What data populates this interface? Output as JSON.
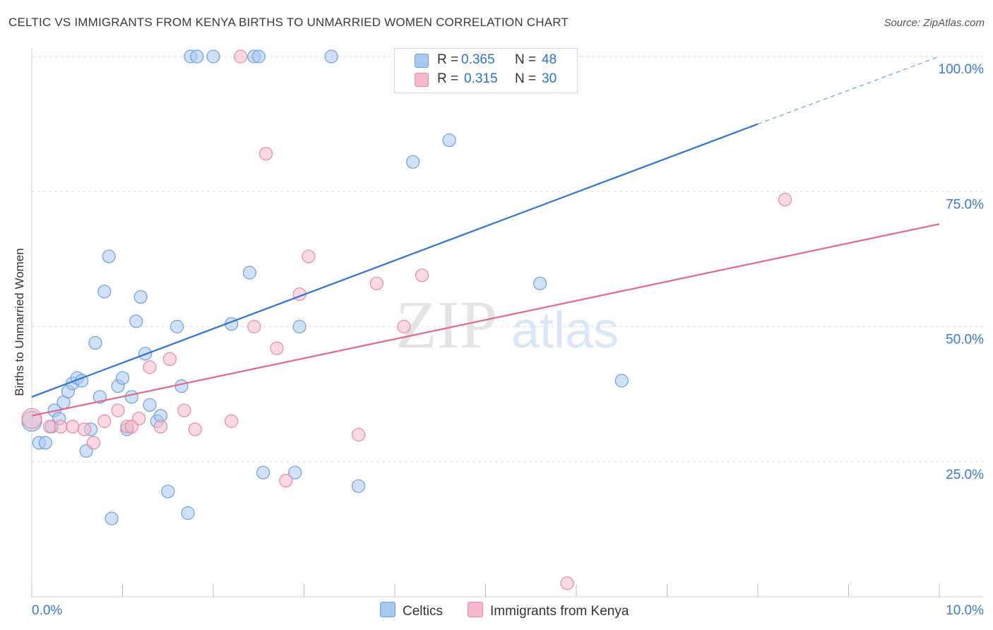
{
  "title": "CELTIC VS IMMIGRANTS FROM KENYA BIRTHS TO UNMARRIED WOMEN CORRELATION CHART",
  "source": "Source: ZipAtlas.com",
  "watermark": {
    "zip": "ZIP",
    "atlas": "atlas"
  },
  "colors": {
    "celtic_fill": "#a9c8f0",
    "celtic_stroke": "#6f9fdc",
    "celtic_line": "#2f73d0",
    "kenya_fill": "#f5b9cb",
    "kenya_stroke": "#e58aa6",
    "kenya_line": "#e0688f",
    "grid": "#dcdcdc",
    "axis_text": "#3c78c8"
  },
  "legend": {
    "r_label": "R =",
    "n_label": "N =",
    "celtic": {
      "r": "0.365",
      "n": "48"
    },
    "kenya": {
      "r": "0.315",
      "n": "30"
    }
  },
  "chart_data": {
    "type": "scatter",
    "title": "CELTIC VS IMMIGRANTS FROM KENYA BIRTHS TO UNMARRIED WOMEN CORRELATION CHART",
    "xlabel": "",
    "ylabel": "Births to Unmarried Women",
    "xlim": [
      0,
      10
    ],
    "ylim": [
      0,
      100
    ],
    "x_tick_labels": [
      "0.0%",
      "10.0%"
    ],
    "y_tick_labels": [
      "25.0%",
      "50.0%",
      "75.0%",
      "100.0%"
    ],
    "y_ticks": [
      25,
      50,
      75,
      100
    ],
    "series": [
      {
        "name": "Celtics",
        "points": [
          [
            0.0,
            32.5
          ],
          [
            0.08,
            28.5
          ],
          [
            0.15,
            28.5
          ],
          [
            0.22,
            31.5
          ],
          [
            0.25,
            34.5
          ],
          [
            0.3,
            33
          ],
          [
            0.35,
            36
          ],
          [
            0.4,
            38
          ],
          [
            0.45,
            39.5
          ],
          [
            0.5,
            40.5
          ],
          [
            0.55,
            40
          ],
          [
            0.6,
            27
          ],
          [
            0.65,
            31
          ],
          [
            0.7,
            47
          ],
          [
            0.75,
            37
          ],
          [
            0.8,
            56.5
          ],
          [
            0.85,
            63
          ],
          [
            0.88,
            14.5
          ],
          [
            0.95,
            39
          ],
          [
            1.0,
            40.5
          ],
          [
            1.05,
            31
          ],
          [
            1.1,
            37
          ],
          [
            1.15,
            51
          ],
          [
            1.2,
            55.5
          ],
          [
            1.25,
            45
          ],
          [
            1.3,
            35.5
          ],
          [
            1.38,
            32.5
          ],
          [
            1.42,
            33.5
          ],
          [
            1.5,
            19.5
          ],
          [
            1.6,
            50
          ],
          [
            1.65,
            39
          ],
          [
            1.72,
            15.5
          ],
          [
            1.75,
            100
          ],
          [
            1.82,
            100
          ],
          [
            2.0,
            100
          ],
          [
            2.2,
            50.5
          ],
          [
            2.4,
            60
          ],
          [
            2.45,
            100
          ],
          [
            2.5,
            100
          ],
          [
            2.55,
            23
          ],
          [
            2.9,
            23
          ],
          [
            2.95,
            50
          ],
          [
            3.3,
            100
          ],
          [
            3.6,
            20.5
          ],
          [
            4.2,
            80.5
          ],
          [
            4.6,
            84.5
          ],
          [
            5.6,
            58
          ],
          [
            6.5,
            40
          ]
        ],
        "trend": {
          "x": [
            0,
            8.0
          ],
          "y": [
            37,
            87.5
          ],
          "dashed_x": [
            8.0,
            10
          ],
          "dashed_y": [
            87.5,
            100
          ]
        }
      },
      {
        "name": "Immigrants from Kenya",
        "points": [
          [
            0.0,
            33
          ],
          [
            0.2,
            31.5
          ],
          [
            0.32,
            31.5
          ],
          [
            0.45,
            31.5
          ],
          [
            0.58,
            31
          ],
          [
            0.68,
            28.5
          ],
          [
            0.8,
            32.5
          ],
          [
            0.95,
            34.5
          ],
          [
            1.05,
            31.5
          ],
          [
            1.18,
            33
          ],
          [
            1.3,
            42.5
          ],
          [
            1.42,
            31.5
          ],
          [
            1.52,
            44
          ],
          [
            1.68,
            34.5
          ],
          [
            1.8,
            31
          ],
          [
            2.2,
            32.5
          ],
          [
            2.3,
            100
          ],
          [
            2.45,
            50
          ],
          [
            2.58,
            82
          ],
          [
            2.7,
            46
          ],
          [
            2.8,
            21.5
          ],
          [
            2.95,
            56
          ],
          [
            3.05,
            63
          ],
          [
            3.6,
            30
          ],
          [
            3.8,
            58
          ],
          [
            4.1,
            50
          ],
          [
            4.3,
            59.5
          ],
          [
            5.9,
            2.5
          ],
          [
            8.3,
            73.5
          ],
          [
            1.1,
            31.5
          ]
        ],
        "trend": {
          "x": [
            0,
            10
          ],
          "y": [
            33.5,
            69
          ]
        }
      }
    ]
  }
}
